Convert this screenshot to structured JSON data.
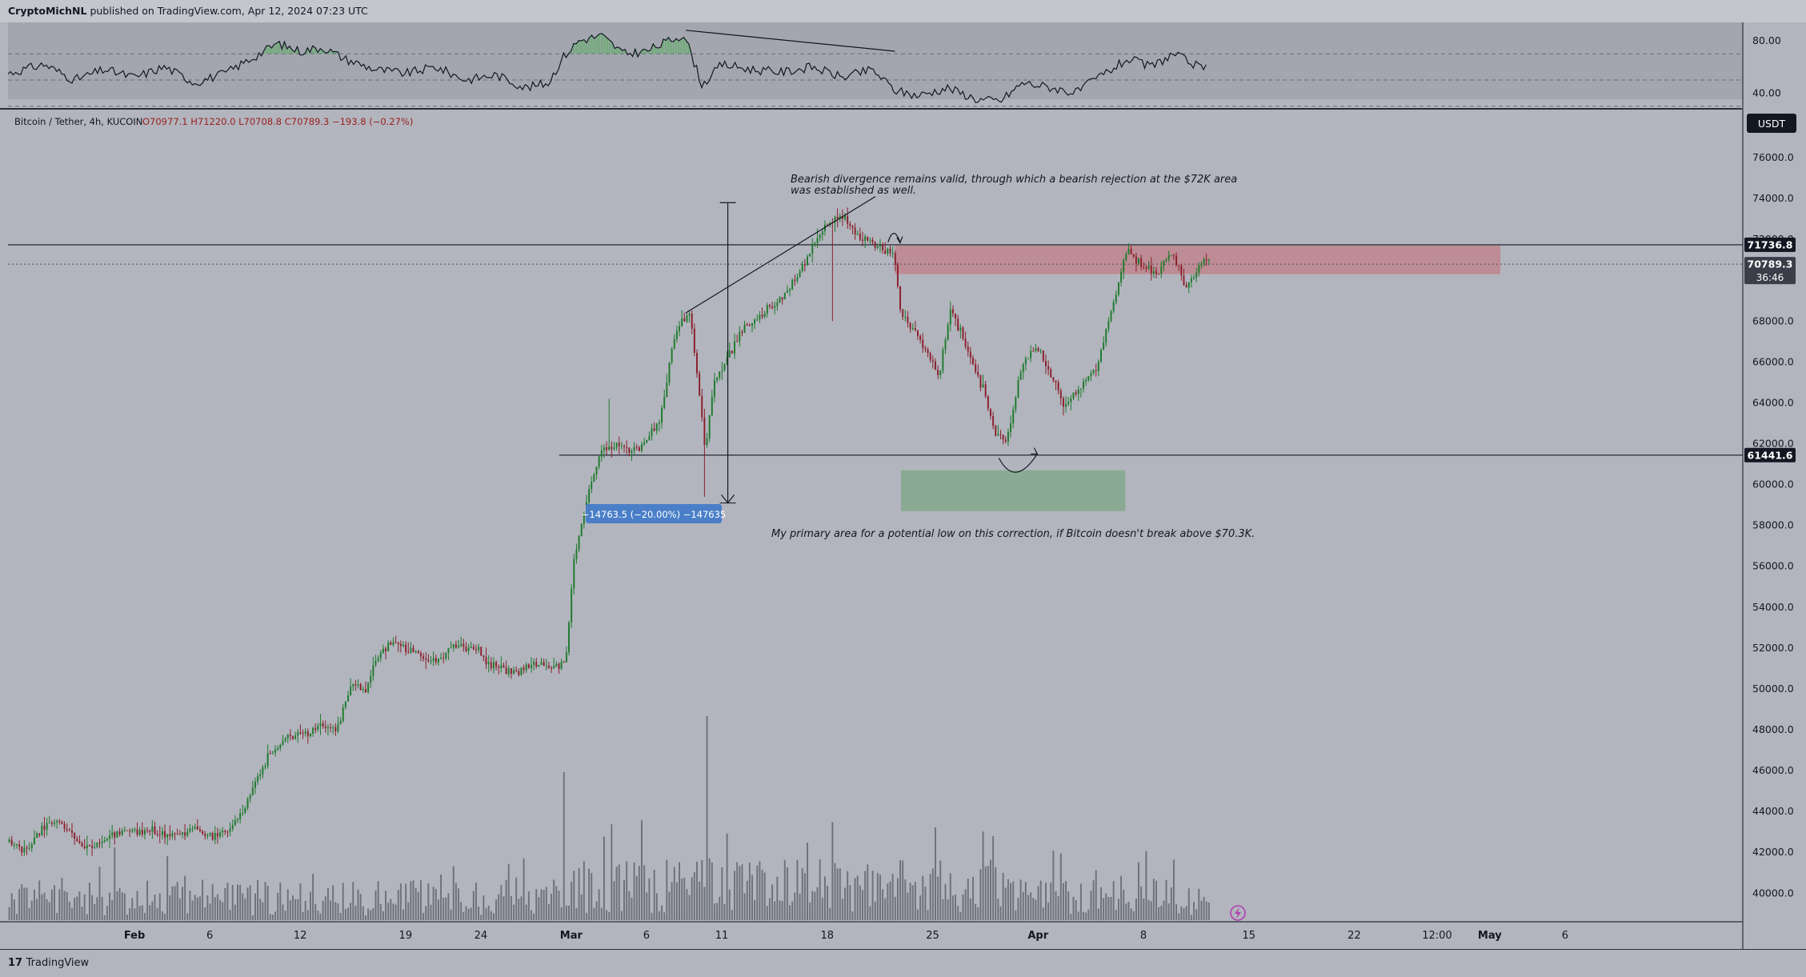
{
  "header": {
    "author": "CryptoMichNL",
    "published_text": "published on TradingView.com, Apr 12, 2024 07:23 UTC"
  },
  "footer": {
    "logo_text": "TradingView"
  },
  "legend": {
    "symbol": "Bitcoin / Tether, 4h, KUCOIN",
    "ohlc": "O70977.1 H71220.0 L70708.8 C70789.3 −193.8 (−0.27%)",
    "currency": "USDT"
  },
  "chart_data": {
    "type": "candlestick",
    "symbol": "BTC/USDT",
    "timeframe": "4h",
    "exchange": "KUCOIN",
    "ylim": [
      38600,
      78000
    ],
    "y_ticks": [
      "76000.0",
      "74000.0",
      "72000.0",
      "70000.0",
      "68000.0",
      "66000.0",
      "64000.0",
      "62000.0",
      "60000.0",
      "58000.0",
      "56000.0",
      "54000.0",
      "52000.0",
      "50000.0",
      "48000.0",
      "46000.0",
      "44000.0",
      "42000.0",
      "40000.0"
    ],
    "x_ticks": [
      "Feb",
      "6",
      "12",
      "19",
      "24",
      "Mar",
      "6",
      "11",
      "18",
      "25",
      "Apr",
      "8",
      "15",
      "22",
      "12:00",
      "May",
      "6"
    ],
    "x_tick_days": [
      1,
      6,
      12,
      19,
      24,
      30,
      35,
      40,
      47,
      54,
      61,
      68,
      75,
      82,
      87.5,
      91,
      96
    ],
    "x_range_days": [
      -7.4,
      107.8
    ],
    "data_end_day": 72.3,
    "price_path": [
      [
        -7.4,
        42500
      ],
      [
        -6,
        42100
      ],
      [
        -5,
        43300
      ],
      [
        -4,
        43600
      ],
      [
        -3,
        42800
      ],
      [
        -2,
        42200
      ],
      [
        0,
        43000
      ],
      [
        2,
        43100
      ],
      [
        4,
        42800
      ],
      [
        5,
        43200
      ],
      [
        6,
        42700
      ],
      [
        7.5,
        43100
      ],
      [
        8.5,
        44300
      ],
      [
        10,
        46800
      ],
      [
        11,
        47500
      ],
      [
        12,
        47700
      ],
      [
        13.5,
        48200
      ],
      [
        14.5,
        48000
      ],
      [
        15.5,
        50300
      ],
      [
        16.5,
        49900
      ],
      [
        17,
        51300
      ],
      [
        18,
        52200
      ],
      [
        19.5,
        51900
      ],
      [
        21,
        51300
      ],
      [
        22.5,
        52100
      ],
      [
        24,
        51800
      ],
      [
        25,
        51000
      ],
      [
        26.5,
        50900
      ],
      [
        28,
        51300
      ],
      [
        29,
        51000
      ],
      [
        29.7,
        51400
      ],
      [
        30.3,
        56500
      ],
      [
        31,
        58900
      ],
      [
        32,
        61500
      ],
      [
        33,
        62000
      ],
      [
        34,
        61700
      ],
      [
        35,
        62000
      ],
      [
        36,
        63300
      ],
      [
        37,
        67600
      ],
      [
        38,
        68300
      ],
      [
        39,
        61700
      ],
      [
        39.6,
        65200
      ],
      [
        40.5,
        66300
      ],
      [
        41.5,
        67600
      ],
      [
        42.5,
        68200
      ],
      [
        43.5,
        68800
      ],
      [
        44.5,
        69500
      ],
      [
        46,
        71500
      ],
      [
        47,
        72700
      ],
      [
        48,
        73300
      ],
      [
        49,
        72300
      ],
      [
        50,
        71800
      ],
      [
        51.5,
        71200
      ],
      [
        52,
        68300
      ],
      [
        53.5,
        66800
      ],
      [
        54.5,
        65300
      ],
      [
        55.3,
        68700
      ],
      [
        56.5,
        66300
      ],
      [
        57.5,
        64600
      ],
      [
        58.3,
        62400
      ],
      [
        59,
        62200
      ],
      [
        60,
        65800
      ],
      [
        61,
        66800
      ],
      [
        62,
        65300
      ],
      [
        62.8,
        63900
      ],
      [
        64,
        64800
      ],
      [
        65,
        65800
      ],
      [
        66,
        68700
      ],
      [
        67,
        71500
      ],
      [
        68,
        70800
      ],
      [
        69,
        70300
      ],
      [
        70,
        71300
      ],
      [
        71,
        69600
      ],
      [
        72,
        70900
      ],
      [
        73,
        71200
      ],
      [
        74,
        70700
      ],
      [
        75,
        71000
      ],
      [
        76,
        69700
      ],
      [
        76.5,
        66300
      ],
      [
        77.5,
        65200
      ],
      [
        78.5,
        65900
      ],
      [
        80,
        66800
      ],
      [
        81,
        68200
      ],
      [
        82,
        68700
      ],
      [
        83,
        69700
      ],
      [
        84,
        70600
      ],
      [
        85,
        72300
      ],
      [
        86,
        71100
      ],
      [
        87,
        69300
      ],
      [
        88,
        70000
      ],
      [
        89,
        70500
      ],
      [
        90,
        71100
      ],
      [
        91,
        70800
      ]
    ],
    "last_price": 70789.3,
    "last_price_label": "70789.3",
    "countdown": "36:46",
    "resistance_level": 71736.8,
    "resistance_label": "71736.8",
    "support_level": 61441.6,
    "support_label": "61441.6",
    "resistance_zone": [
      70300,
      71700
    ],
    "target_zone": [
      58700,
      60700
    ],
    "measure_label": "−14763.5 (−20.00%) −147635",
    "annotations": [
      "Bearish divergence remains valid, through which a bearish rejection at the $72K area",
      "was established as well.",
      "My primary area for a potential low on this correction, if Bitcoin doesn't break above $70.3K."
    ],
    "rsi": {
      "y_ticks": [
        "80.00",
        "40.00"
      ],
      "ylim": [
        28,
        94
      ],
      "overbought": 70,
      "oversold": 30,
      "path": [
        [
          -7.4,
          55
        ],
        [
          -5,
          62
        ],
        [
          -3,
          50
        ],
        [
          -1,
          58
        ],
        [
          1,
          52
        ],
        [
          3,
          60
        ],
        [
          5,
          48
        ],
        [
          7,
          55
        ],
        [
          9,
          68
        ],
        [
          10.5,
          78
        ],
        [
          12,
          72
        ],
        [
          13.5,
          75
        ],
        [
          15,
          66
        ],
        [
          17,
          58
        ],
        [
          19,
          55
        ],
        [
          21,
          60
        ],
        [
          23,
          50
        ],
        [
          25,
          54
        ],
        [
          27,
          44
        ],
        [
          28.5,
          48
        ],
        [
          29.5,
          68
        ],
        [
          30.5,
          80
        ],
        [
          32,
          84
        ],
        [
          33.5,
          70
        ],
        [
          35,
          72
        ],
        [
          36.5,
          80
        ],
        [
          37.5,
          85
        ],
        [
          38.7,
          46
        ],
        [
          40,
          62
        ],
        [
          42,
          58
        ],
        [
          44,
          56
        ],
        [
          46,
          60
        ],
        [
          48,
          52
        ],
        [
          50,
          58
        ],
        [
          51.5,
          42
        ],
        [
          53,
          38
        ],
        [
          55,
          44
        ],
        [
          57,
          35
        ],
        [
          58.5,
          34
        ],
        [
          60,
          48
        ],
        [
          62,
          44
        ],
        [
          63.5,
          40
        ],
        [
          65,
          52
        ],
        [
          67,
          66
        ],
        [
          68.5,
          60
        ],
        [
          70,
          70
        ],
        [
          72,
          58
        ],
        [
          74,
          64
        ],
        [
          76,
          44
        ],
        [
          77.5,
          32
        ],
        [
          79,
          40
        ],
        [
          81,
          52
        ],
        [
          82.5,
          48
        ],
        [
          84,
          62
        ],
        [
          85,
          72
        ],
        [
          86,
          56
        ],
        [
          87.5,
          60
        ],
        [
          89,
          52
        ],
        [
          91,
          62
        ]
      ]
    }
  }
}
